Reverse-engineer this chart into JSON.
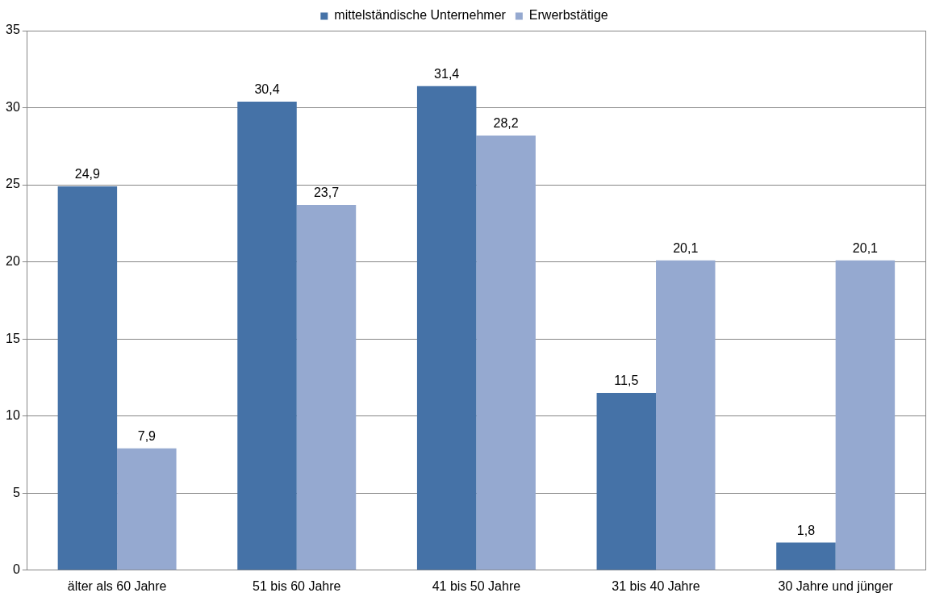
{
  "chart_data": {
    "type": "bar",
    "categories": [
      "älter als 60 Jahre",
      "51 bis 60 Jahre",
      "41 bis 50 Jahre",
      "31 bis 40 Jahre",
      "30 Jahre und jünger"
    ],
    "series": [
      {
        "name": "mittelständische Unternehmer",
        "color": "#4572a7",
        "values": [
          24.9,
          30.4,
          31.4,
          11.5,
          1.8
        ],
        "value_labels": [
          "24,9",
          "30,4",
          "31,4",
          "11,5",
          "1,8"
        ]
      },
      {
        "name": "Erwerbstätige",
        "color": "#95a9d0",
        "values": [
          7.9,
          23.7,
          28.2,
          20.1,
          20.1
        ],
        "value_labels": [
          "7,9",
          "23,7",
          "28,2",
          "20,1",
          "20,1"
        ]
      }
    ],
    "ylim": [
      0,
      35
    ],
    "yticks": [
      0,
      5,
      10,
      15,
      20,
      25,
      30,
      35
    ],
    "grid": "y",
    "legend": "top"
  }
}
